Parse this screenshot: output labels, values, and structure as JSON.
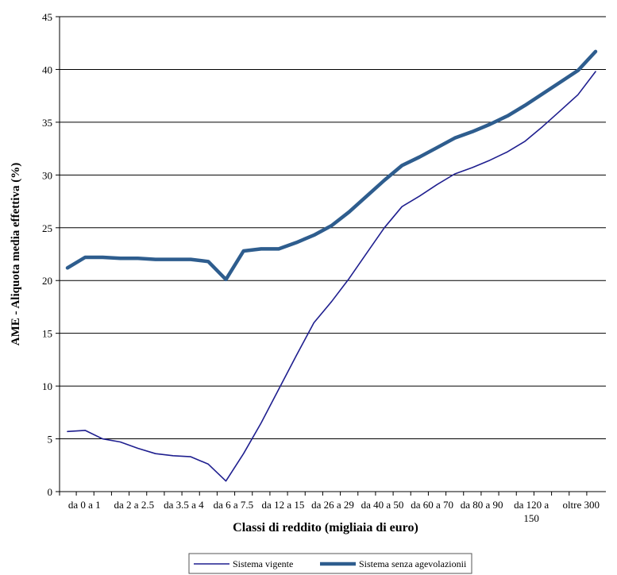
{
  "chart_data": {
    "type": "line",
    "xlabel": "Classi di reddito (migliaia di euro)",
    "ylabel": "AME - Aliquota media effettiva (%)",
    "ylim": [
      0,
      45
    ],
    "yticks": [
      0,
      5,
      10,
      15,
      20,
      25,
      30,
      35,
      40,
      45
    ],
    "grid": true,
    "legend_position": "bottom",
    "tick_labels": [
      "da 0 a 1",
      "da 2 a 2.5",
      "da 3.5 a 4",
      "da 6 a 7.5",
      "da 12 a 15",
      "da 26 a 29",
      "da 40 a 50",
      "da 60 a 70",
      "da 80 a 90",
      "da 120 a\n150",
      "oltre 300"
    ],
    "x_count": 31,
    "series": [
      {
        "name": "Sistema vigente",
        "color": "#1f1f8f",
        "style": "thin",
        "values": [
          5.7,
          5.8,
          5.0,
          4.7,
          4.1,
          3.6,
          3.4,
          3.3,
          2.6,
          1.0,
          3.6,
          6.5,
          9.7,
          12.9,
          16.0,
          18.0,
          20.2,
          22.6,
          25.0,
          27.0,
          28.0,
          29.1,
          30.1,
          30.7,
          31.4,
          32.2,
          33.2,
          34.6,
          36.1,
          37.6,
          39.8
        ]
      },
      {
        "name": "Sistema senza agevolazionii",
        "color": "#2e5d8e",
        "style": "thick",
        "values": [
          21.2,
          22.2,
          22.2,
          22.1,
          22.1,
          22.0,
          22.0,
          22.0,
          21.8,
          20.1,
          22.8,
          23.0,
          23.0,
          23.6,
          24.3,
          25.2,
          26.5,
          28.0,
          29.5,
          30.9,
          31.7,
          32.6,
          33.5,
          34.1,
          34.8,
          35.6,
          36.6,
          37.7,
          38.8,
          39.9,
          41.7
        ]
      }
    ]
  }
}
